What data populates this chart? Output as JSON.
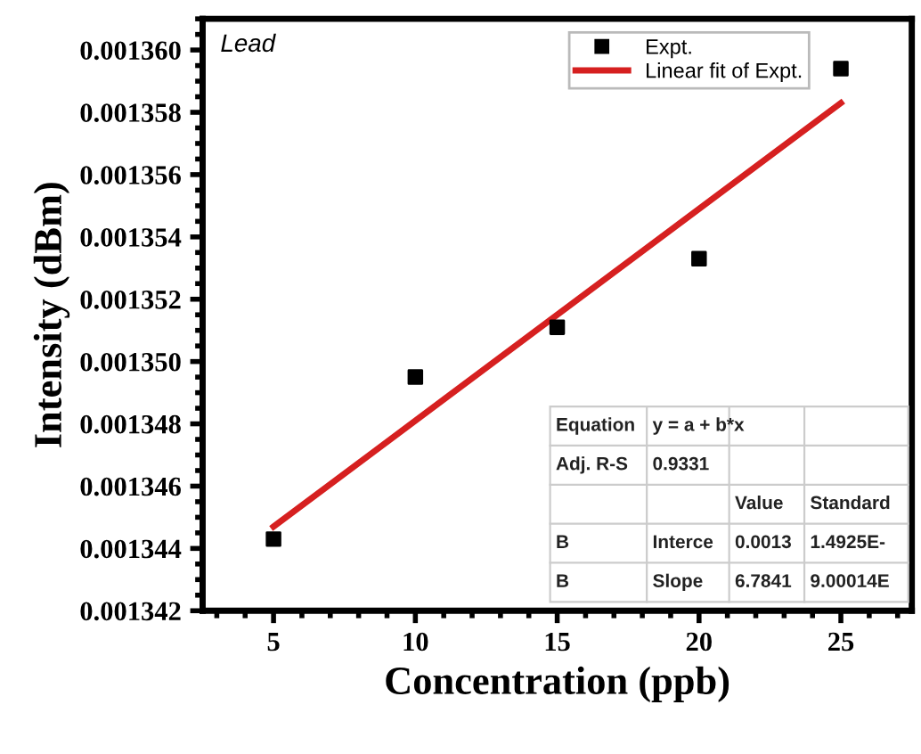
{
  "chart_data": {
    "type": "scatter",
    "xlabel": "Concentration (ppb)",
    "ylabel": "Intensity (dBm)",
    "x": [
      5,
      10,
      15,
      20,
      25
    ],
    "series": [
      {
        "name": "Expt.",
        "color": "#000000",
        "marker": "square",
        "values": [
          0.0013443,
          0.0013495,
          0.0013511,
          0.0013533,
          0.0013594
        ]
      },
      {
        "name": "Linear fit of Expt.",
        "type": "line",
        "color": "#d62020",
        "x": [
          5,
          25
        ],
        "values": [
          0.0013447,
          0.0013583
        ],
        "line_style": "solid",
        "marker": "none"
      }
    ],
    "xlim": [
      2.5,
      27.5
    ],
    "xticks": [
      5,
      10,
      15,
      20,
      25
    ],
    "ylim": [
      0.001342,
      0.001361
    ],
    "yticks": [
      0.001342,
      0.001344,
      0.001346,
      0.001348,
      {
        "value": 0.00135,
        "label": "0.001350"
      },
      0.001352,
      0.001354,
      0.001356,
      0.001358,
      {
        "value": 0.00136,
        "label": "0.001360"
      }
    ],
    "grid": false,
    "legend": "top right",
    "annotations": [
      "Lead",
      "Equation\ty = a + b*x\t",
      "Adj. R-S\t0.9331\t\t",
      "\t\tValue\tStandard",
      "B\tInterce\t0.0013\t1.4925E-",
      "B\tSlope\t6.7841\t9.00014E"
    ]
  }
}
